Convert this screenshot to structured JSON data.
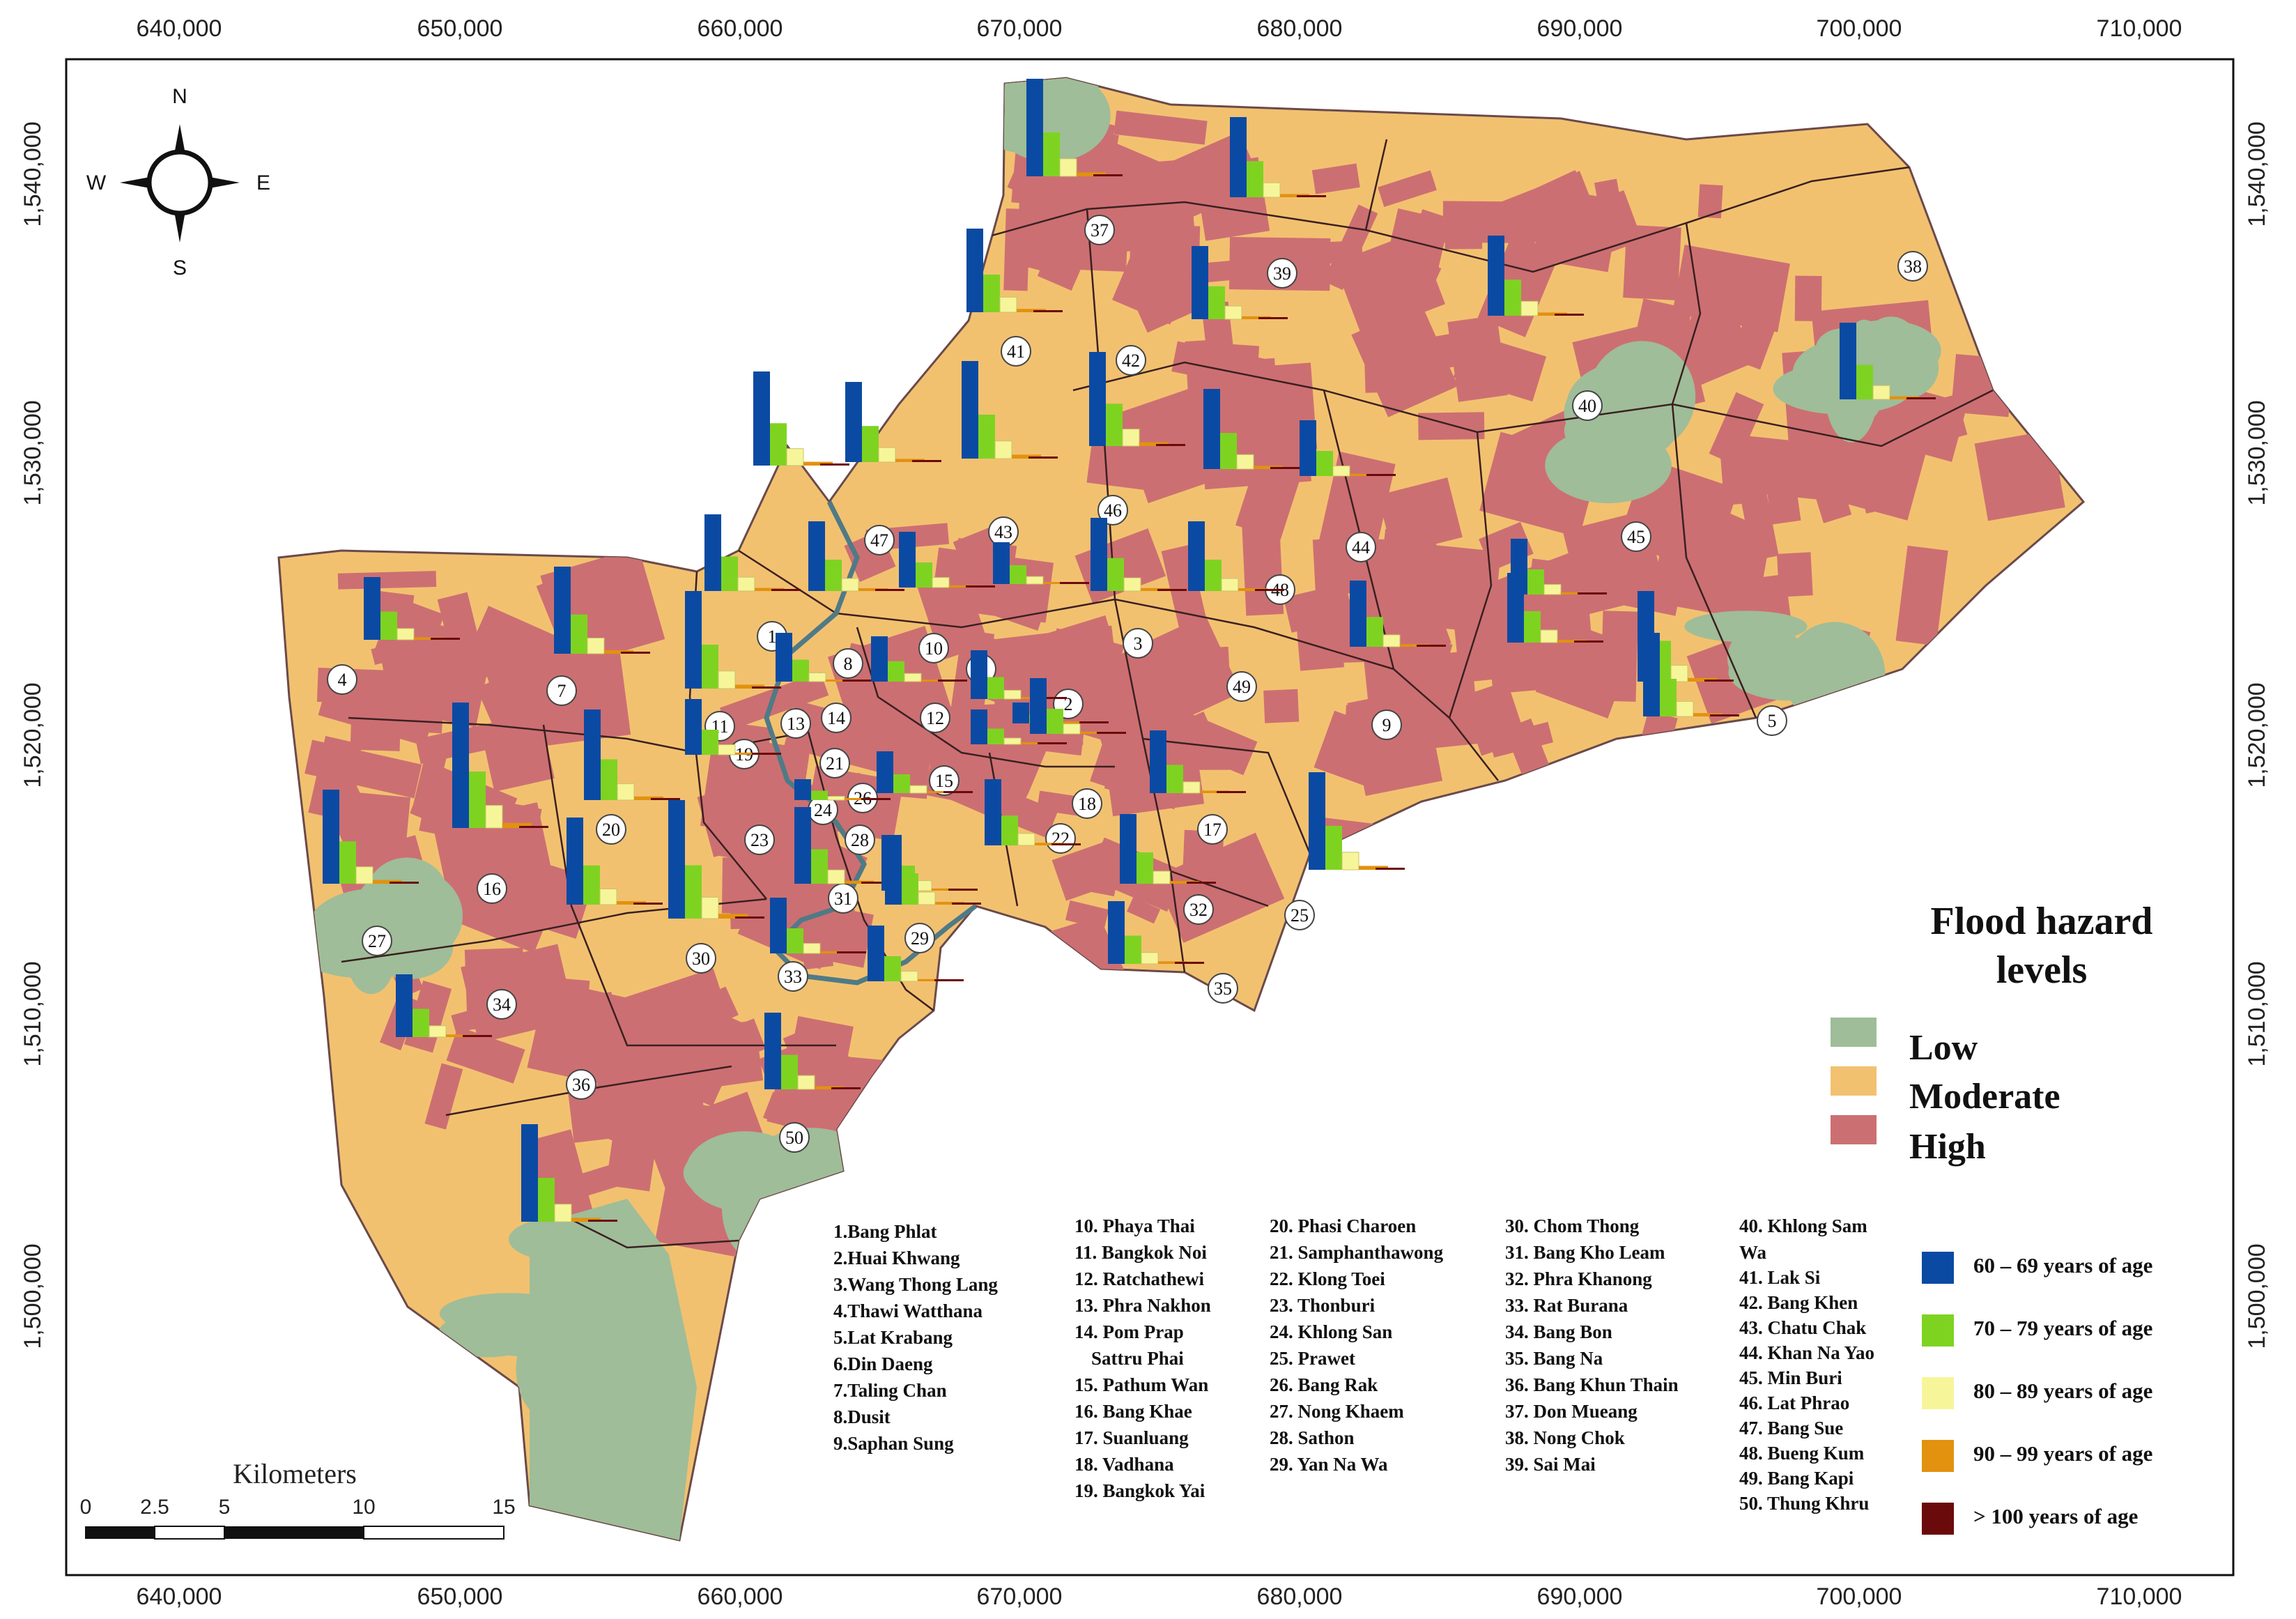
{
  "x_axis_labels": [
    "640,000",
    "650,000",
    "660,000",
    "670,000",
    "680,000",
    "690,000",
    "700,000",
    "710,000"
  ],
  "y_axis_labels": [
    "1,540,000",
    "1,530,000",
    "1,520,000",
    "1,510,000",
    "1,500,000"
  ],
  "compass": {
    "n": "N",
    "s": "S",
    "e": "E",
    "w": "W"
  },
  "scale_bar": {
    "title": "Kilometers",
    "ticks": [
      "0",
      "2.5",
      "5",
      "10",
      "15"
    ]
  },
  "legend": {
    "title_line1": "Flood hazard",
    "title_line2": "levels",
    "hazard": [
      {
        "label": "Low",
        "color": "#9fbd98"
      },
      {
        "label": "Moderate",
        "color": "#f2c170"
      },
      {
        "label": "High",
        "color": "#cc6f72"
      }
    ],
    "age_groups": [
      {
        "label": "60 – 69 years of age",
        "color": "#0b4aa3"
      },
      {
        "label": "70 – 79 years of age",
        "color": "#7ed321"
      },
      {
        "label": "80 – 89 years of age",
        "color": "#f7f59a"
      },
      {
        "label": "90 – 99 years of age",
        "color": "#e2920f"
      },
      {
        "label": "> 100 years of age",
        "color": "#6b0a0a"
      }
    ]
  },
  "district_list": {
    "col1": [
      "1.Bang Phlat",
      "2.Huai Khwang",
      "3.Wang Thong Lang",
      "4.Thawi Watthana",
      "5.Lat Krabang",
      "6.Din Daeng",
      "7.Taling Chan",
      "8.Dusit",
      "9.Saphan Sung"
    ],
    "col2": [
      "10. Phaya Thai",
      "11. Bangkok Noi",
      "12. Ratchathewi",
      "13. Phra Nakhon",
      "14. Pom Prap",
      "Sattru Phai",
      "15. Pathum Wan",
      "16. Bang Khae",
      "17. Suanluang",
      "18. Vadhana",
      "19. Bangkok Yai"
    ],
    "col3": [
      "20. Phasi Charoen",
      "21. Samphanthawong",
      "22. Klong Toei",
      "23. Thonburi",
      "24. Khlong San",
      "25. Prawet",
      "26. Bang Rak",
      "27. Nong Khaem",
      "28. Sathon",
      "29. Yan Na Wa"
    ],
    "col4": [
      "30. Chom Thong",
      "31. Bang Kho Leam",
      "32. Phra Khanong",
      "33. Rat Burana",
      "34. Bang Bon",
      "35. Bang Na",
      "36. Bang Khun Thain",
      "37. Don Mueang",
      "38. Nong Chok",
      "39. Sai Mai"
    ],
    "col5": [
      "40. Khlong Sam",
      "Wa",
      "41. Lak Si",
      "42. Bang Khen",
      "43. Chatu Chak",
      "44. Khan Na Yao",
      "45. Min Buri",
      "46. Lat Phrao",
      "47. Bang Sue",
      "48. Bueng Kum",
      "49. Bang Kapi",
      "50. Thung Khru"
    ]
  },
  "district_numbers": [
    "1",
    "2",
    "3",
    "4",
    "5",
    "6",
    "7",
    "8",
    "9",
    "10",
    "11",
    "12",
    "13",
    "14",
    "15",
    "16",
    "17",
    "18",
    "19",
    "20",
    "21",
    "22",
    "23",
    "24",
    "25",
    "26",
    "27",
    "28",
    "29",
    "30",
    "31",
    "32",
    "33",
    "34",
    "35",
    "36",
    "37",
    "38",
    "39",
    "40",
    "41",
    "42",
    "43",
    "44",
    "45",
    "46",
    "47",
    "48",
    "49",
    "50"
  ]
}
